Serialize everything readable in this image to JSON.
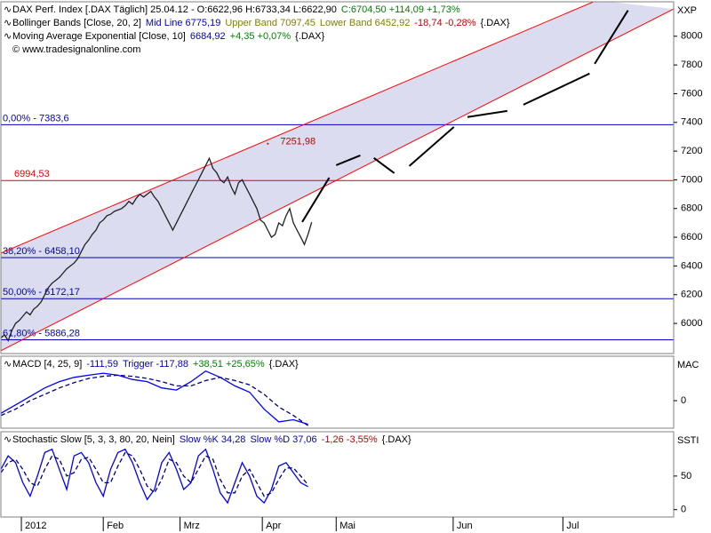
{
  "chart_data": [
    {
      "type": "line",
      "legend": [
        [
          {
            "text": "DAX Perf. Index [.DAX  Täglich] 25.04.12 - O:6622,96 H:6733,34 L:6622,90",
            "color": "#000000"
          },
          {
            "text": "C:6704,50 +114,09 +1,73%",
            "color": "#008000"
          }
        ],
        [
          {
            "text": "Bollinger Bands [Close, 20, 2]",
            "color": "#000000"
          },
          {
            "text": "Mid Line 6775,19",
            "color": "#0000c0"
          },
          {
            "text": "Upper Band 7097,45",
            "color": "#808000"
          },
          {
            "text": "Lower Band 6452,92",
            "color": "#808000"
          },
          {
            "text": "-18,74 -0,28%",
            "color": "#c00000"
          },
          {
            "text": "{.DAX}",
            "color": "#000000"
          }
        ],
        [
          {
            "text": "Moving Average Exponential [Close, 10]",
            "color": "#000000"
          },
          {
            "text": "6684,92",
            "color": "#0000c0"
          },
          {
            "text": "+4,35 +0,07%",
            "color": "#008000"
          },
          {
            "text": "{.DAX}",
            "color": "#000000"
          }
        ],
        [
          {
            "text": "© www.tradesignalonline.com",
            "color": "#000000"
          }
        ]
      ],
      "axis_label": "XXP",
      "xlim": [
        0,
        184
      ],
      "xticks": [
        {
          "value": 5.6,
          "label": "2012"
        },
        {
          "value": 28,
          "label": "Feb"
        },
        {
          "value": 49,
          "label": "Mrz"
        },
        {
          "value": 71.5,
          "label": "Apr"
        },
        {
          "value": 91.7,
          "label": "Mai"
        },
        {
          "value": 123.7,
          "label": "Jun"
        },
        {
          "value": 153.7,
          "label": "Jul"
        }
      ],
      "ylim": [
        5790,
        8240
      ],
      "yticks": [
        6000,
        6200,
        6400,
        6600,
        6800,
        7000,
        7200,
        7400,
        7600,
        7800,
        8000
      ],
      "x": [
        0,
        1,
        2,
        3,
        4,
        5,
        6,
        7,
        8,
        9,
        10,
        11,
        12,
        13,
        14,
        15,
        16,
        17,
        18,
        19,
        20,
        21,
        22,
        23,
        24,
        25,
        26,
        27,
        28,
        29,
        30,
        31,
        32,
        33,
        34,
        35,
        36,
        37,
        38,
        39,
        40,
        41,
        42,
        43,
        44,
        45,
        46,
        47,
        48,
        49,
        50,
        51,
        52,
        53,
        54,
        55,
        56,
        57,
        58,
        59,
        60,
        61,
        62,
        63,
        64,
        65,
        66,
        67,
        68,
        69,
        70,
        71,
        72,
        73,
        74,
        75,
        76,
        77,
        78,
        79,
        80,
        81,
        82,
        83,
        84,
        85
      ],
      "series": [
        {
          "color": "#202020",
          "values": [
            5900,
            5920,
            5880,
            5950,
            6000,
            6020,
            6050,
            6080,
            6060,
            6100,
            6120,
            6150,
            6200,
            6250,
            6280,
            6300,
            6320,
            6350,
            6380,
            6400,
            6420,
            6450,
            6500,
            6550,
            6580,
            6620,
            6650,
            6700,
            6720,
            6750,
            6760,
            6780,
            6790,
            6800,
            6820,
            6850,
            6830,
            6870,
            6900,
            6880,
            6900,
            6920,
            6880,
            6850,
            6800,
            6750,
            6700,
            6650,
            6700,
            6750,
            6800,
            6850,
            6900,
            6950,
            7000,
            7050,
            7100,
            7150,
            7080,
            7050,
            7000,
            6980,
            7020,
            6950,
            6900,
            6980,
            7000,
            6950,
            6900,
            6850,
            6800,
            6720,
            6700,
            6650,
            6600,
            6620,
            6700,
            6680,
            6750,
            6800,
            6700,
            6650,
            6600,
            6550,
            6620,
            6704.5
          ]
        }
      ],
      "channel_fill": "#dcdcf0",
      "trendlines": [
        {
          "color": "#ff0000",
          "points": [
            [
              0,
              6490
            ],
            [
              163,
              8250
            ]
          ]
        },
        {
          "color": "#ff0000",
          "points": [
            [
              0,
              5810
            ],
            [
              184,
              8190
            ]
          ]
        }
      ],
      "levels": [
        {
          "value": 7383.6,
          "label": "0,00% - 7383,6",
          "color": "#0000c0"
        },
        {
          "value": 6994.53,
          "label": "6994,53",
          "color": "#e00000"
        },
        {
          "value": 6458.1,
          "label": "38,20% - 6458,10",
          "color": "#0000c0"
        },
        {
          "value": 6172.17,
          "label": "50,00% - 6172,17",
          "color": "#0000c0"
        },
        {
          "value": 5886.28,
          "label": "61,80% - 5886,28",
          "color": "#0000c0"
        }
      ],
      "annotations": [
        {
          "x": 73,
          "y": 7251.98,
          "label": "7251,98",
          "color": "#c00000"
        }
      ],
      "projection": {
        "color": "#000000",
        "segments": [
          [
            [
              82.4,
              6706
            ],
            [
              89.8,
              7015
            ]
          ],
          [
            [
              91.7,
              7102
            ],
            [
              98.3,
              7170
            ]
          ],
          [
            [
              102,
              7152
            ],
            [
              107.6,
              7046
            ]
          ],
          [
            [
              111.7,
              7096
            ],
            [
              123.9,
              7368
            ]
          ],
          [
            [
              127.6,
              7437
            ],
            [
              138.5,
              7480
            ]
          ],
          [
            [
              142.9,
              7523
            ],
            [
              161,
              7740
            ]
          ],
          [
            [
              162.4,
              7808
            ],
            [
              171.5,
              8180
            ]
          ]
        ]
      }
    },
    {
      "type": "line",
      "legend": [
        [
          {
            "text": "MACD [4, 25, 9]",
            "color": "#000000"
          },
          {
            "text": "-111,59",
            "color": "#0000c0"
          },
          {
            "text": "Trigger -117,88",
            "color": "#0000c0"
          },
          {
            "text": "+38,51 +25,65%",
            "color": "#008000"
          },
          {
            "text": "{.DAX}",
            "color": "#000000"
          }
        ]
      ],
      "axis_label": "MAC",
      "ylim": [
        -130,
        210
      ],
      "yticks": [
        0
      ],
      "x": [
        0,
        4,
        8,
        12,
        16,
        20,
        24,
        28,
        32,
        36,
        40,
        44,
        48,
        52,
        56,
        60,
        64,
        68,
        72,
        76,
        80,
        84
      ],
      "series": [
        {
          "color": "#0000ff",
          "values": [
            -60,
            -20,
            20,
            60,
            90,
            110,
            120,
            130,
            120,
            100,
            90,
            60,
            50,
            90,
            140,
            110,
            70,
            40,
            -40,
            -100,
            -90,
            -111.59
          ]
        },
        {
          "color": "#000080",
          "style": "dashed",
          "values": [
            -70,
            -40,
            0,
            30,
            60,
            85,
            105,
            115,
            120,
            115,
            105,
            90,
            70,
            70,
            95,
            110,
            95,
            75,
            30,
            -30,
            -70,
            -117.88
          ]
        }
      ]
    },
    {
      "type": "line",
      "legend": [
        [
          {
            "text": "Stochastic Slow [5, 3, 3, 80, 20, Nein]",
            "color": "#000000"
          },
          {
            "text": "Slow %K 34,28",
            "color": "#0000c0"
          },
          {
            "text": "Slow %D 37,06",
            "color": "#0000c0"
          },
          {
            "text": "-1,26 -3,55%",
            "color": "#c00000"
          },
          {
            "text": "{.DAX}",
            "color": "#000000"
          }
        ]
      ],
      "axis_label": "SSTI",
      "ylim": [
        -11,
        116
      ],
      "yticks": [
        0,
        50
      ],
      "x": [
        0,
        2,
        4,
        6,
        8,
        10,
        12,
        14,
        16,
        18,
        20,
        22,
        24,
        26,
        28,
        30,
        32,
        34,
        36,
        38,
        40,
        42,
        44,
        46,
        48,
        50,
        52,
        54,
        56,
        58,
        60,
        62,
        64,
        66,
        68,
        70,
        72,
        74,
        76,
        78,
        80,
        82,
        84
      ],
      "series": [
        {
          "color": "#0000ff",
          "values": [
            60,
            80,
            70,
            40,
            20,
            50,
            85,
            90,
            60,
            30,
            80,
            85,
            70,
            40,
            20,
            60,
            85,
            90,
            70,
            40,
            15,
            30,
            70,
            85,
            60,
            30,
            40,
            80,
            90,
            60,
            25,
            10,
            40,
            70,
            50,
            20,
            10,
            30,
            65,
            70,
            55,
            40,
            34.28
          ]
        },
        {
          "color": "#000080",
          "style": "dashed",
          "values": [
            55,
            70,
            75,
            60,
            40,
            35,
            60,
            80,
            75,
            50,
            55,
            75,
            78,
            60,
            40,
            40,
            65,
            85,
            80,
            60,
            35,
            25,
            45,
            75,
            70,
            50,
            40,
            60,
            80,
            75,
            45,
            25,
            25,
            50,
            60,
            40,
            20,
            25,
            45,
            62,
            62,
            50,
            37.06
          ]
        }
      ]
    }
  ]
}
